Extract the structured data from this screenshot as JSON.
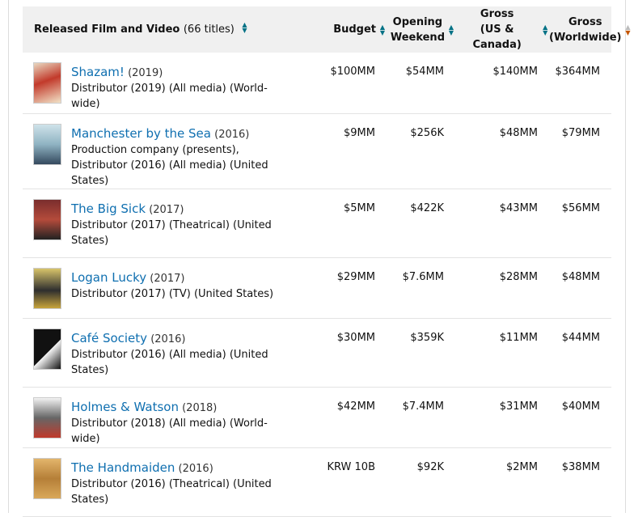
{
  "header": {
    "title_label": "Released Film and Video",
    "title_count": "(66 titles)",
    "budget": "Budget",
    "opening_1": "Opening",
    "opening_2": "Weekend",
    "gross_us_1": "Gross",
    "gross_us_2": "(US & Canada)",
    "gross_ww_1": "Gross",
    "gross_ww_2": "(Worldwide)",
    "sort_up": "▲",
    "sort_down": "▼"
  },
  "films": [
    {
      "title": "Shazam!",
      "year": "(2019)",
      "role": "Distributor (2019) (All media) (World-wide)",
      "budget": "$100MM",
      "opening": "$54MM",
      "gross_us": "$140MM",
      "gross_ww": "$364MM"
    },
    {
      "title": "Manchester by the Sea",
      "year": "(2016)",
      "role": "Production company (presents), Distributor (2016) (All media) (United States)",
      "budget": "$9MM",
      "opening": "$256K",
      "gross_us": "$48MM",
      "gross_ww": "$79MM"
    },
    {
      "title": "The Big Sick",
      "year": "(2017)",
      "role": "Distributor (2017) (Theatrical) (United States)",
      "budget": "$5MM",
      "opening": "$422K",
      "gross_us": "$43MM",
      "gross_ww": "$56MM"
    },
    {
      "title": "Logan Lucky",
      "year": "(2017)",
      "role": "Distributor (2017) (TV) (United States)",
      "budget": "$29MM",
      "opening": "$7.6MM",
      "gross_us": "$28MM",
      "gross_ww": "$48MM"
    },
    {
      "title": "Café Society",
      "year": "(2016)",
      "role": "Distributor (2016) (All media) (United States)",
      "budget": "$30MM",
      "opening": "$359K",
      "gross_us": "$11MM",
      "gross_ww": "$44MM"
    },
    {
      "title": "Holmes & Watson",
      "year": "(2018)",
      "role": "Distributor (2018) (All media) (World-wide)",
      "budget": "$42MM",
      "opening": "$7.4MM",
      "gross_us": "$31MM",
      "gross_ww": "$40MM"
    },
    {
      "title": "The Handmaiden",
      "year": "(2016)",
      "role": "Distributor (2016) (Theatrical) (United States)",
      "budget": "KRW 10B",
      "opening": "$92K",
      "gross_us": "$2MM",
      "gross_ww": "$38MM"
    }
  ]
}
